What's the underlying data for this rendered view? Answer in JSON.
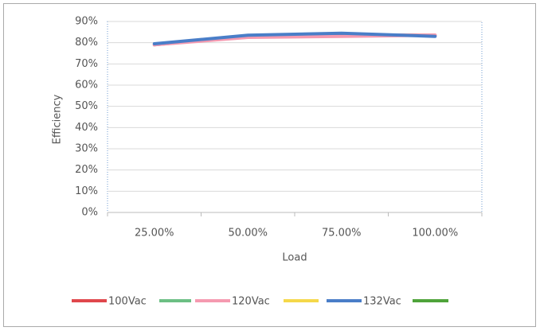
{
  "chart_data": {
    "type": "line",
    "categories": [
      "25.00%",
      "50.00%",
      "75.00%",
      "100.00%"
    ],
    "series": [
      {
        "name": "100Vac",
        "color": "#e0474c",
        "values": [
          79,
          83,
          83.5,
          83.5
        ]
      },
      {
        "name": "120Vac",
        "color": "#f59ab0",
        "values": [
          79,
          82.5,
          83,
          83.5
        ]
      },
      {
        "name": "132Vac",
        "color": "#4a7ec8",
        "values": [
          79.5,
          83.5,
          84.5,
          83
        ]
      }
    ],
    "ylim": [
      0,
      90
    ],
    "yticks": [
      {
        "value": 0,
        "label": "0%"
      },
      {
        "value": 10,
        "label": "10%"
      },
      {
        "value": 20,
        "label": "20%"
      },
      {
        "value": 30,
        "label": "30%"
      },
      {
        "value": 40,
        "label": "40%"
      },
      {
        "value": 50,
        "label": "50%"
      },
      {
        "value": 60,
        "label": "60%"
      },
      {
        "value": 70,
        "label": "70%"
      },
      {
        "value": 80,
        "label": "80%"
      },
      {
        "value": 90,
        "label": "90%"
      }
    ],
    "y_label": "Efficiency",
    "x_label": "Load",
    "grid": true,
    "legend": "bottom"
  }
}
